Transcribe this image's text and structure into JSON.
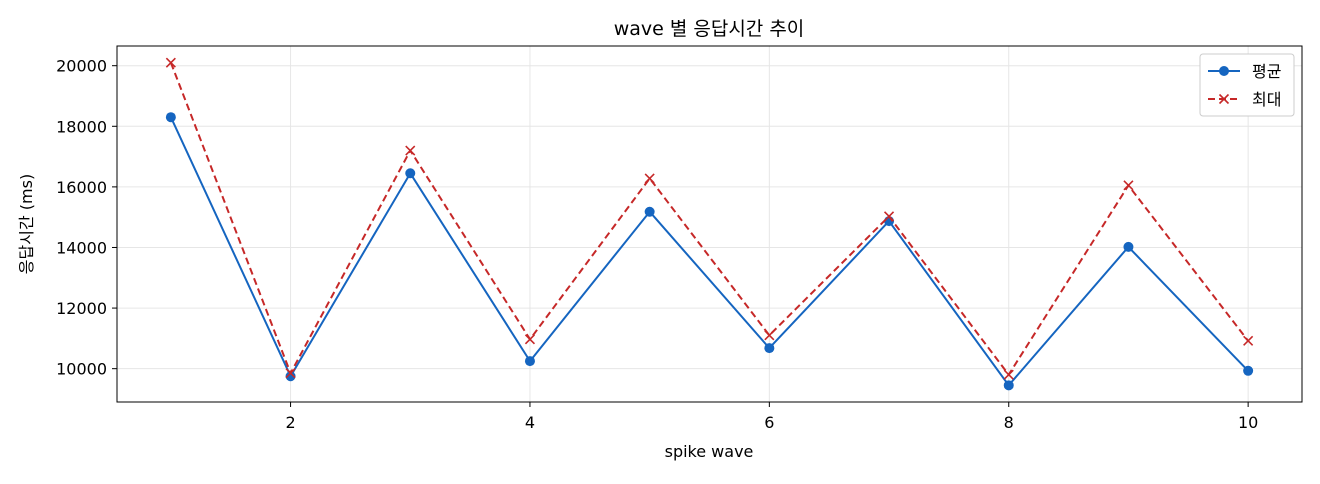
{
  "chart_data": {
    "type": "line",
    "title": "wave 별 응답시간 추이",
    "xlabel": "spike wave",
    "ylabel": "응답시간 (ms)",
    "x": [
      1,
      2,
      3,
      4,
      5,
      6,
      7,
      8,
      9,
      10
    ],
    "xlim": [
      0.55,
      10.45
    ],
    "ylim": [
      8900,
      20650
    ],
    "xticks": [
      2,
      4,
      6,
      8,
      10
    ],
    "yticks": [
      10000,
      12000,
      14000,
      16000,
      18000,
      20000
    ],
    "grid": true,
    "legend_position": "top-right",
    "series": [
      {
        "name": "평균",
        "color": "#1565c0",
        "line_style": "solid",
        "marker": "circle",
        "values": [
          18300,
          9750,
          16450,
          10250,
          15180,
          10680,
          14870,
          9450,
          14020,
          9930
        ]
      },
      {
        "name": "최대",
        "color": "#c62828",
        "line_style": "dashed",
        "marker": "x",
        "values": [
          20100,
          9850,
          17200,
          10970,
          16280,
          11100,
          15030,
          9800,
          16050,
          10920
        ]
      }
    ]
  }
}
